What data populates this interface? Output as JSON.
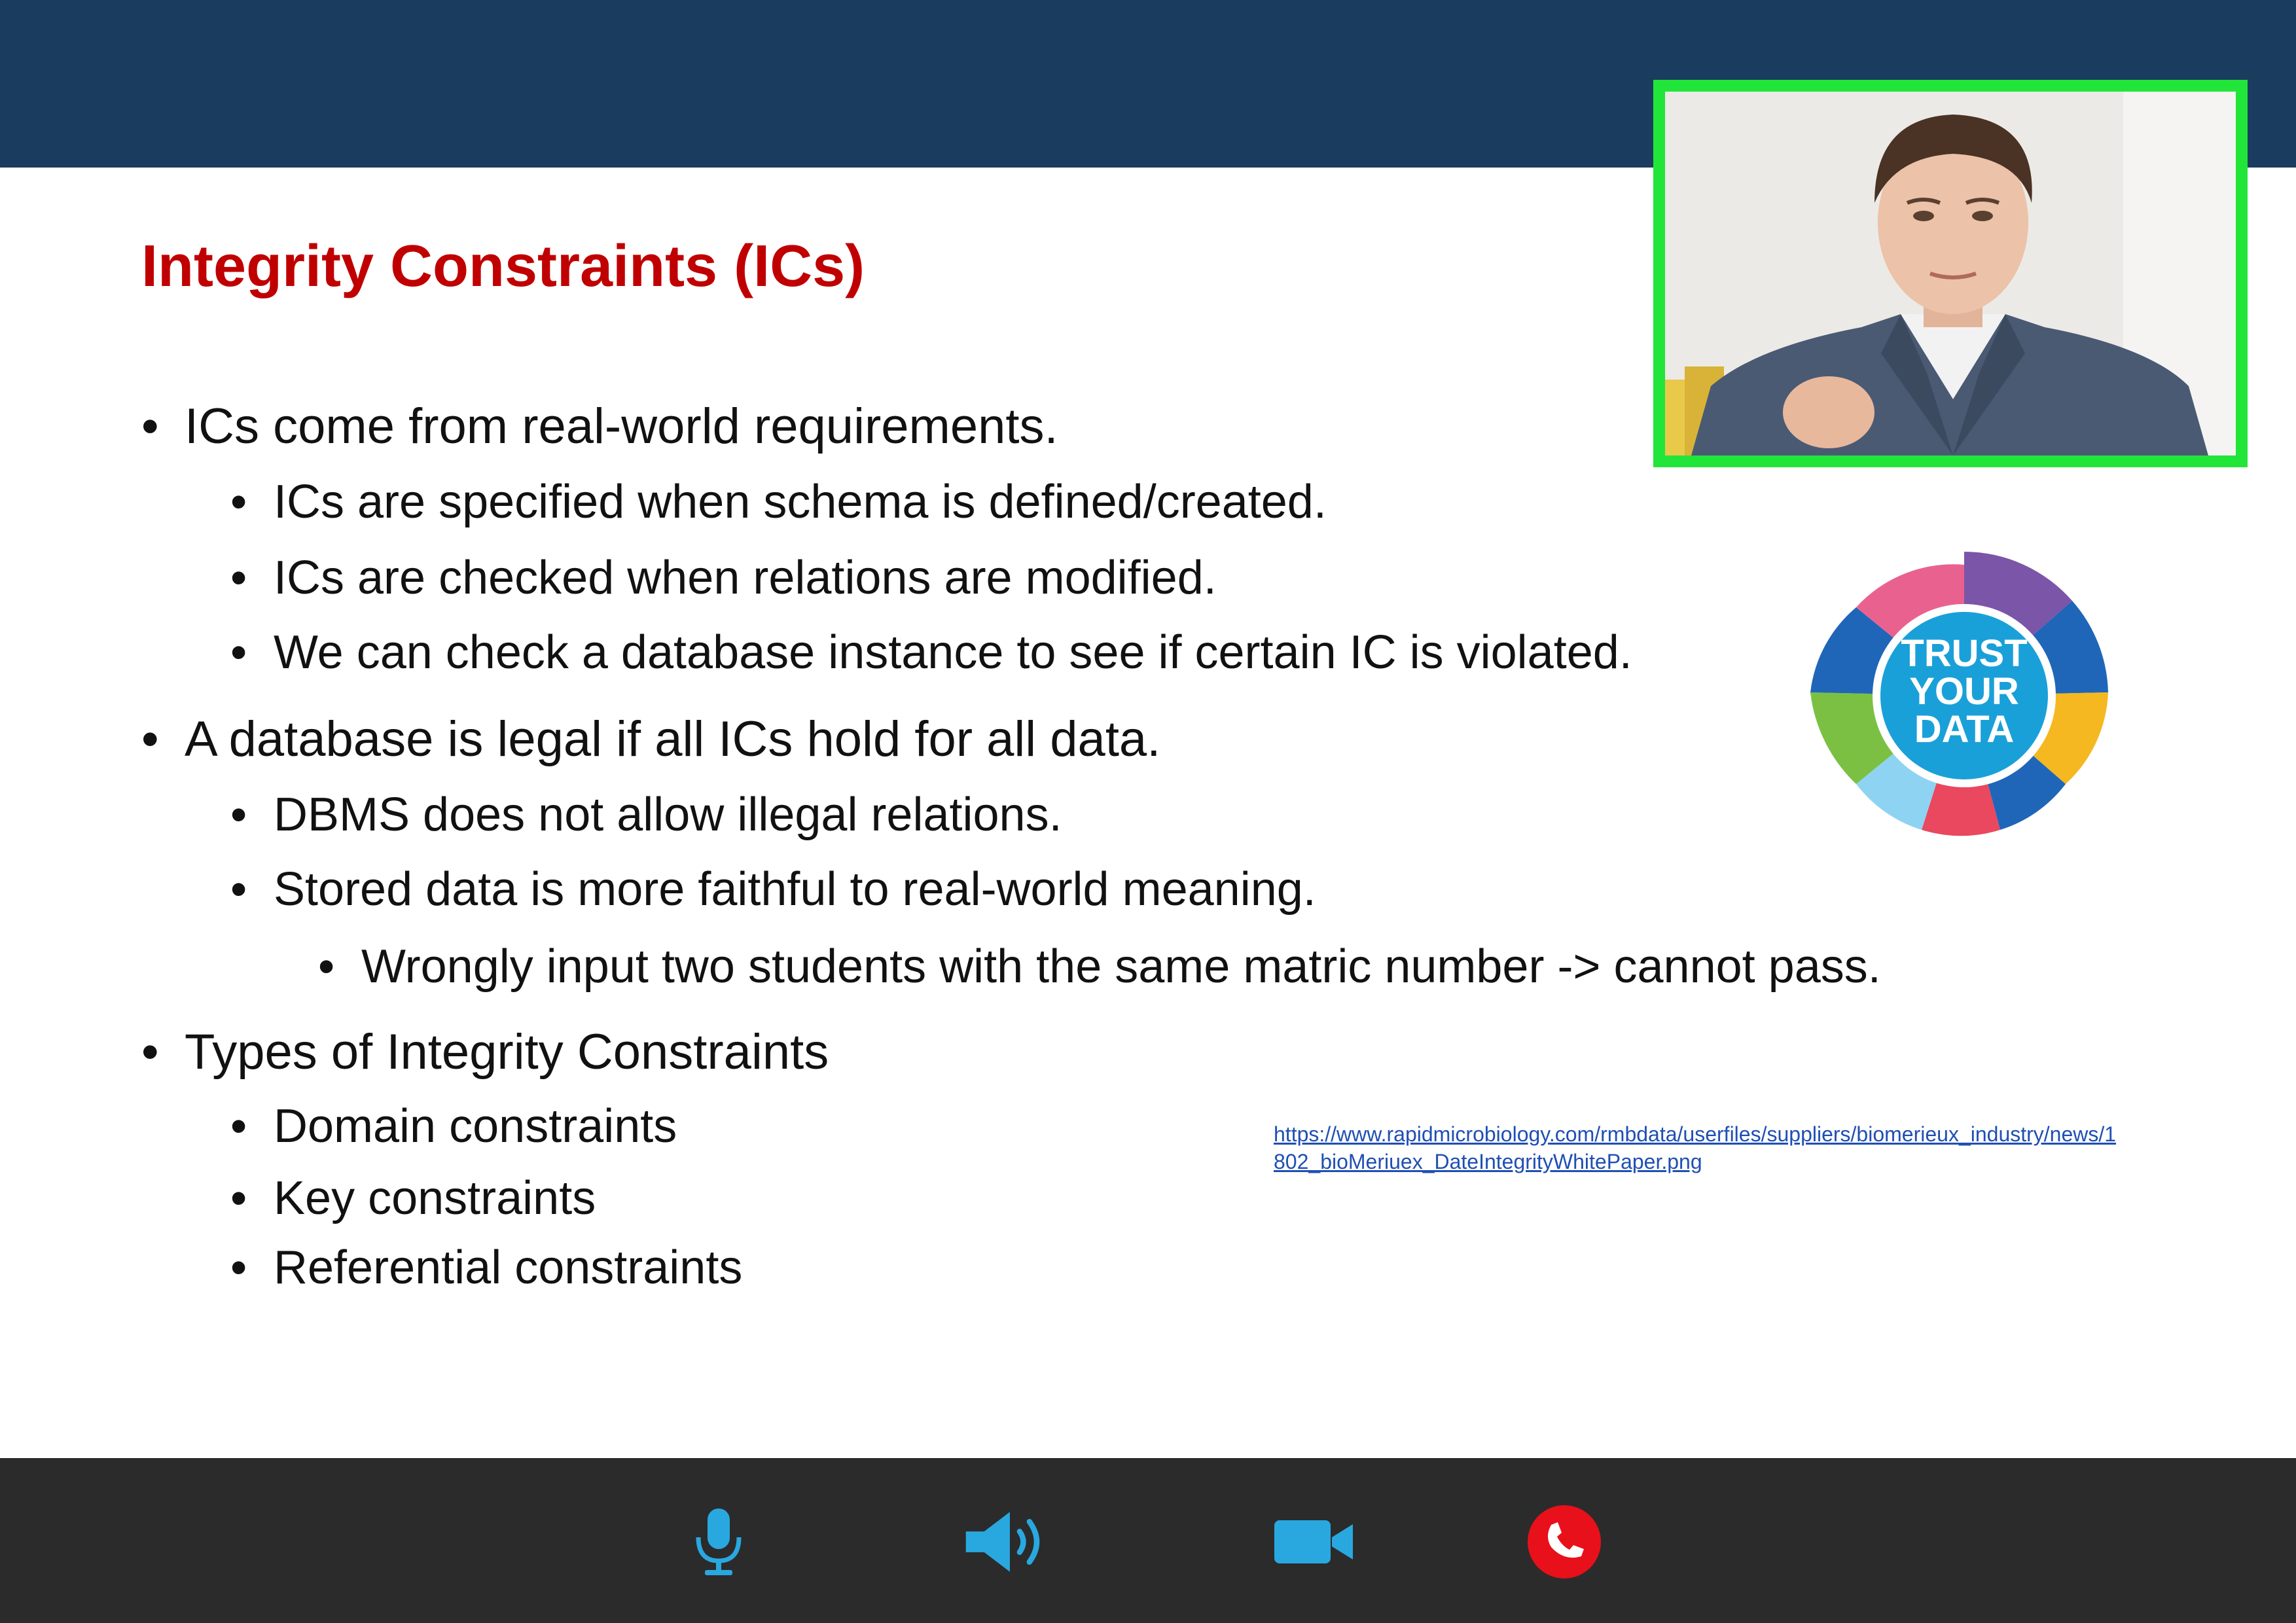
{
  "slide": {
    "title": "Integrity Constraints (ICs)",
    "bullet_char": "•",
    "bullets": [
      "ICs come from real-world requirements.",
      "ICs are specified when schema is defined/created.",
      "ICs are checked when relations are modified.",
      "We can check a database instance to see if certain IC is violated.",
      "A database is legal if all ICs hold for all data.",
      "DBMS does not allow illegal relations.",
      "Stored data is more faithful to real-world meaning.",
      "Wrongly input two students with the same matric number -> cannot pass.",
      "Types of Integrity Constraints",
      "Domain constraints",
      "Key constraints",
      "Referential constraints"
    ],
    "source_link": {
      "line1": "https://www.rapidmicrobiology.com/rmbdata/userfiles/suppliers/biomerieux_industry/news/1",
      "line2": "802_bioMeriuex_DateIntegrityWhitePaper.png"
    },
    "logo": {
      "line1": "TRUST",
      "line2": "YOUR",
      "line3": "DATA"
    }
  },
  "video_tile": {
    "border_color": "#22e53a",
    "content": "person-video-feed"
  },
  "call_controls": {
    "microphone": "microphone-icon",
    "speaker": "speaker-icon",
    "camera": "video-camera-icon",
    "hangup": "hang-up-icon",
    "icon_color": "#29a8e0",
    "hangup_color": "#e8101a"
  },
  "colors": {
    "header": "#1a3d5f",
    "title": "#c00000",
    "toolbar": "#2b2b2b"
  }
}
